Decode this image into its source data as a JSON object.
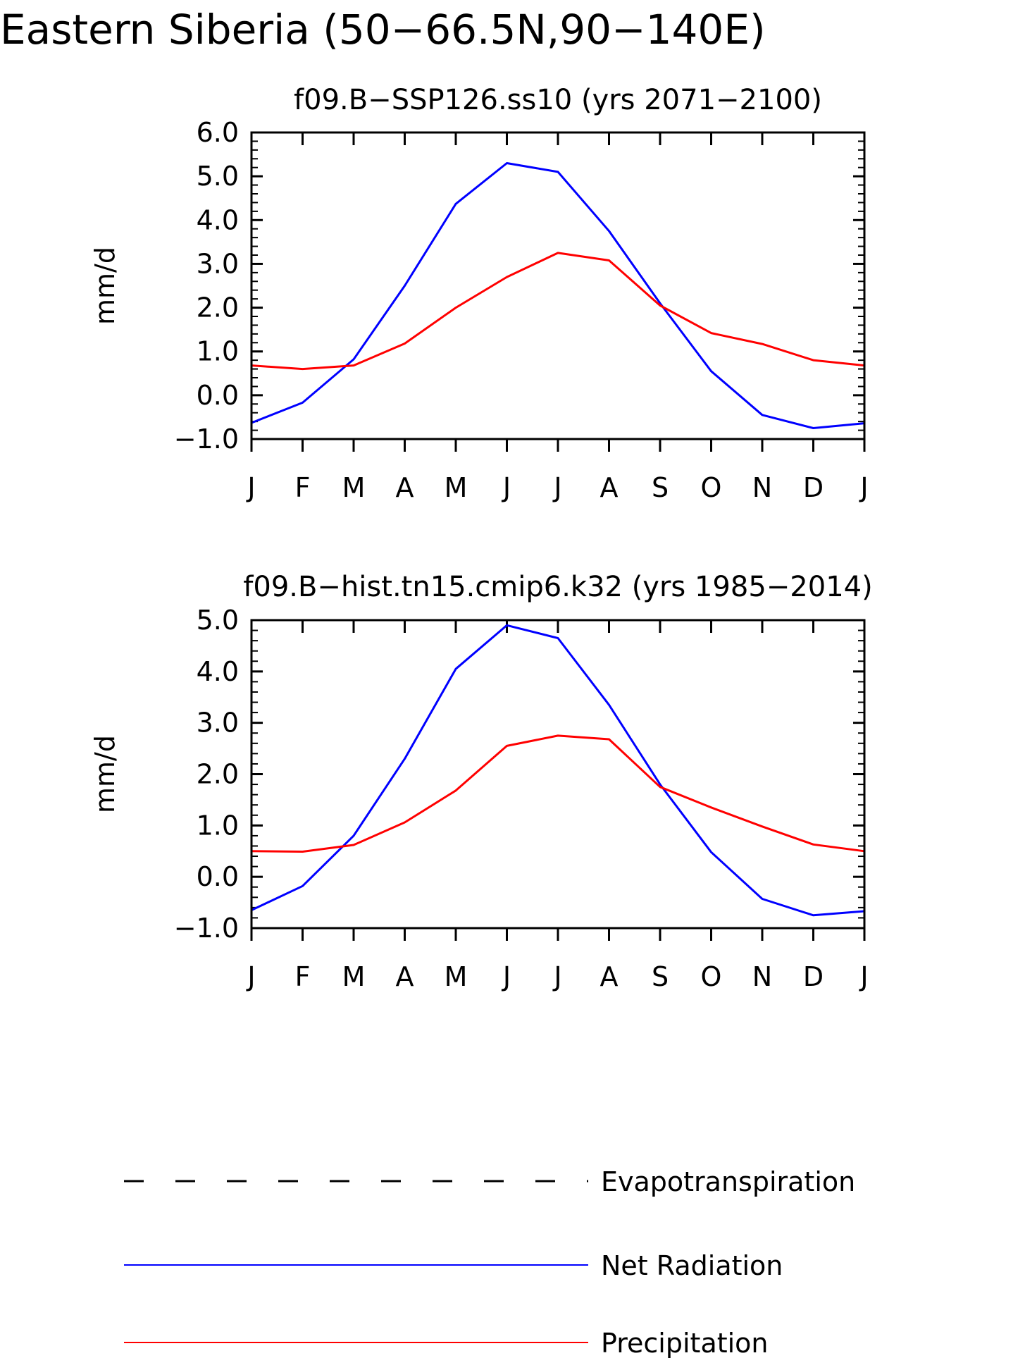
{
  "title": "Eastern Siberia (50−66.5N,90−140E)",
  "chart_data": [
    {
      "type": "line",
      "subtitle": "f09.B−SSP126.ss10 (yrs 2071−2100)",
      "ylabel": "mm/d",
      "ylim": [
        -1.0,
        6.0
      ],
      "yticks": [
        "6.0",
        "5.0",
        "4.0",
        "3.0",
        "2.0",
        "1.0",
        "0.0",
        "−1.0"
      ],
      "categories": [
        "J",
        "F",
        "M",
        "A",
        "M",
        "J",
        "J",
        "A",
        "S",
        "O",
        "N",
        "D",
        "J"
      ],
      "series": [
        {
          "name": "Net Radiation",
          "color": "#0000ff",
          "values": [
            -0.63,
            -0.17,
            0.82,
            2.5,
            4.37,
            5.3,
            5.1,
            3.75,
            2.1,
            0.55,
            -0.45,
            -0.75,
            -0.64
          ]
        },
        {
          "name": "Precipitation",
          "color": "#ff0000",
          "values": [
            0.68,
            0.6,
            0.68,
            1.18,
            2.0,
            2.7,
            3.25,
            3.08,
            2.05,
            1.42,
            1.17,
            0.8,
            0.68
          ]
        }
      ]
    },
    {
      "type": "line",
      "subtitle": "f09.B−hist.tn15.cmip6.k32 (yrs 1985−2014)",
      "ylabel": "mm/d",
      "ylim": [
        -1.0,
        5.0
      ],
      "yticks": [
        "5.0",
        "4.0",
        "3.0",
        "2.0",
        "1.0",
        "0.0",
        "−1.0"
      ],
      "categories": [
        "J",
        "F",
        "M",
        "A",
        "M",
        "J",
        "J",
        "A",
        "S",
        "O",
        "N",
        "D",
        "J"
      ],
      "series": [
        {
          "name": "Net Radiation",
          "color": "#0000ff",
          "values": [
            -0.65,
            -0.18,
            0.8,
            2.3,
            4.05,
            4.9,
            4.65,
            3.35,
            1.8,
            0.48,
            -0.43,
            -0.75,
            -0.67
          ]
        },
        {
          "name": "Precipitation",
          "color": "#ff0000",
          "values": [
            0.5,
            0.49,
            0.62,
            1.06,
            1.68,
            2.55,
            2.75,
            2.68,
            1.75,
            1.35,
            0.98,
            0.63,
            0.5
          ]
        }
      ]
    }
  ],
  "legend": {
    "items": [
      {
        "label": "Evapotranspiration",
        "color": "#000000",
        "style": "dashed"
      },
      {
        "label": "Net Radiation",
        "color": "#0000ff",
        "style": "solid"
      },
      {
        "label": "Precipitation",
        "color": "#ff0000",
        "style": "solid"
      }
    ]
  }
}
